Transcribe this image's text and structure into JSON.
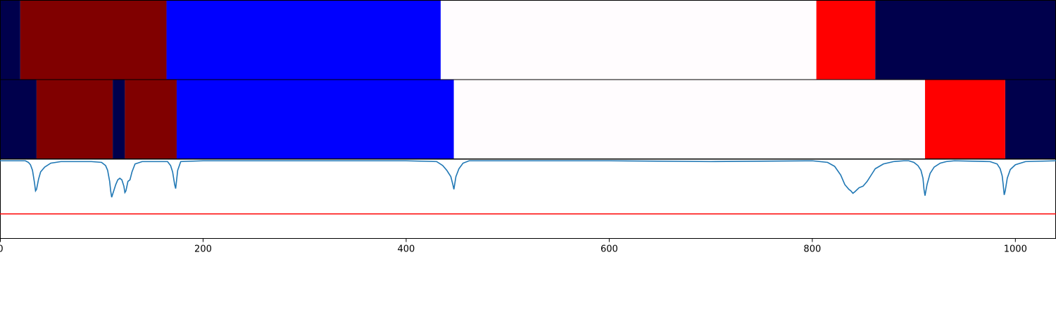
{
  "chart_data": {
    "type": "area",
    "x_range": [
      0,
      1040
    ],
    "x_ticks": [
      0,
      200,
      400,
      600,
      800,
      1000
    ],
    "x_tick_labels": [
      "0",
      "200",
      "400",
      "600",
      "800",
      "1000"
    ],
    "colors": {
      "background": "#00004c",
      "state_dark_red": "#800000",
      "state_blue": "#0000ff",
      "state_white": "#fffcfe",
      "state_red": "#ff0000",
      "curve": "#1f77b4",
      "threshold": "#ff0000"
    },
    "segment_tracks": [
      {
        "segments": [
          {
            "start": 0,
            "end": 20,
            "color": "#00004c"
          },
          {
            "start": 20,
            "end": 164,
            "color": "#800000"
          },
          {
            "start": 164,
            "end": 434,
            "color": "#0000ff"
          },
          {
            "start": 434,
            "end": 804,
            "color": "#fffcfe"
          },
          {
            "start": 804,
            "end": 862,
            "color": "#ff0000"
          },
          {
            "start": 862,
            "end": 1040,
            "color": "#00004c"
          }
        ]
      },
      {
        "segments": [
          {
            "start": 0,
            "end": 36,
            "color": "#00004c"
          },
          {
            "start": 36,
            "end": 111,
            "color": "#800000"
          },
          {
            "start": 111,
            "end": 123,
            "color": "#00004c"
          },
          {
            "start": 123,
            "end": 174,
            "color": "#800000"
          },
          {
            "start": 174,
            "end": 447,
            "color": "#0000ff"
          },
          {
            "start": 447,
            "end": 911,
            "color": "#fffcfe"
          },
          {
            "start": 911,
            "end": 990,
            "color": "#ff0000"
          },
          {
            "start": 990,
            "end": 1040,
            "color": "#00004c"
          }
        ]
      }
    ],
    "signal": {
      "y_range": [
        0,
        1
      ],
      "threshold": 0.31,
      "baseline": 0.98,
      "x": [
        0,
        25,
        28,
        30,
        32,
        34,
        35,
        36,
        38,
        40,
        44,
        50,
        60,
        90,
        100,
        104,
        106,
        108,
        109,
        110,
        112,
        114,
        116,
        118,
        120,
        122,
        123,
        124,
        126,
        128,
        130,
        133,
        140,
        165,
        168,
        170,
        172,
        173,
        175,
        178,
        200,
        400,
        430,
        436,
        440,
        444,
        446,
        447,
        449,
        452,
        456,
        462,
        500,
        600,
        700,
        800,
        815,
        822,
        828,
        832,
        836,
        838,
        840,
        842,
        846,
        850,
        854,
        858,
        862,
        870,
        880,
        890,
        895,
        900,
        904,
        907,
        909,
        910,
        911,
        913,
        916,
        920,
        926,
        932,
        940,
        975,
        982,
        985,
        987,
        988,
        989,
        990,
        992,
        995,
        1000,
        1010,
        1040
      ],
      "y": [
        0.98,
        0.98,
        0.96,
        0.93,
        0.86,
        0.7,
        0.6,
        0.62,
        0.75,
        0.84,
        0.9,
        0.95,
        0.97,
        0.97,
        0.96,
        0.92,
        0.86,
        0.72,
        0.6,
        0.52,
        0.6,
        0.68,
        0.74,
        0.76,
        0.74,
        0.66,
        0.58,
        0.6,
        0.72,
        0.74,
        0.84,
        0.94,
        0.97,
        0.97,
        0.92,
        0.84,
        0.68,
        0.63,
        0.86,
        0.97,
        0.98,
        0.98,
        0.97,
        0.92,
        0.86,
        0.78,
        0.68,
        0.62,
        0.78,
        0.88,
        0.95,
        0.98,
        0.98,
        0.98,
        0.97,
        0.98,
        0.96,
        0.91,
        0.8,
        0.68,
        0.62,
        0.6,
        0.57,
        0.59,
        0.64,
        0.66,
        0.72,
        0.8,
        0.88,
        0.94,
        0.97,
        0.98,
        0.98,
        0.96,
        0.92,
        0.86,
        0.76,
        0.62,
        0.54,
        0.68,
        0.82,
        0.9,
        0.95,
        0.97,
        0.98,
        0.97,
        0.94,
        0.88,
        0.79,
        0.68,
        0.55,
        0.6,
        0.76,
        0.87,
        0.93,
        0.97,
        0.98
      ]
    }
  }
}
